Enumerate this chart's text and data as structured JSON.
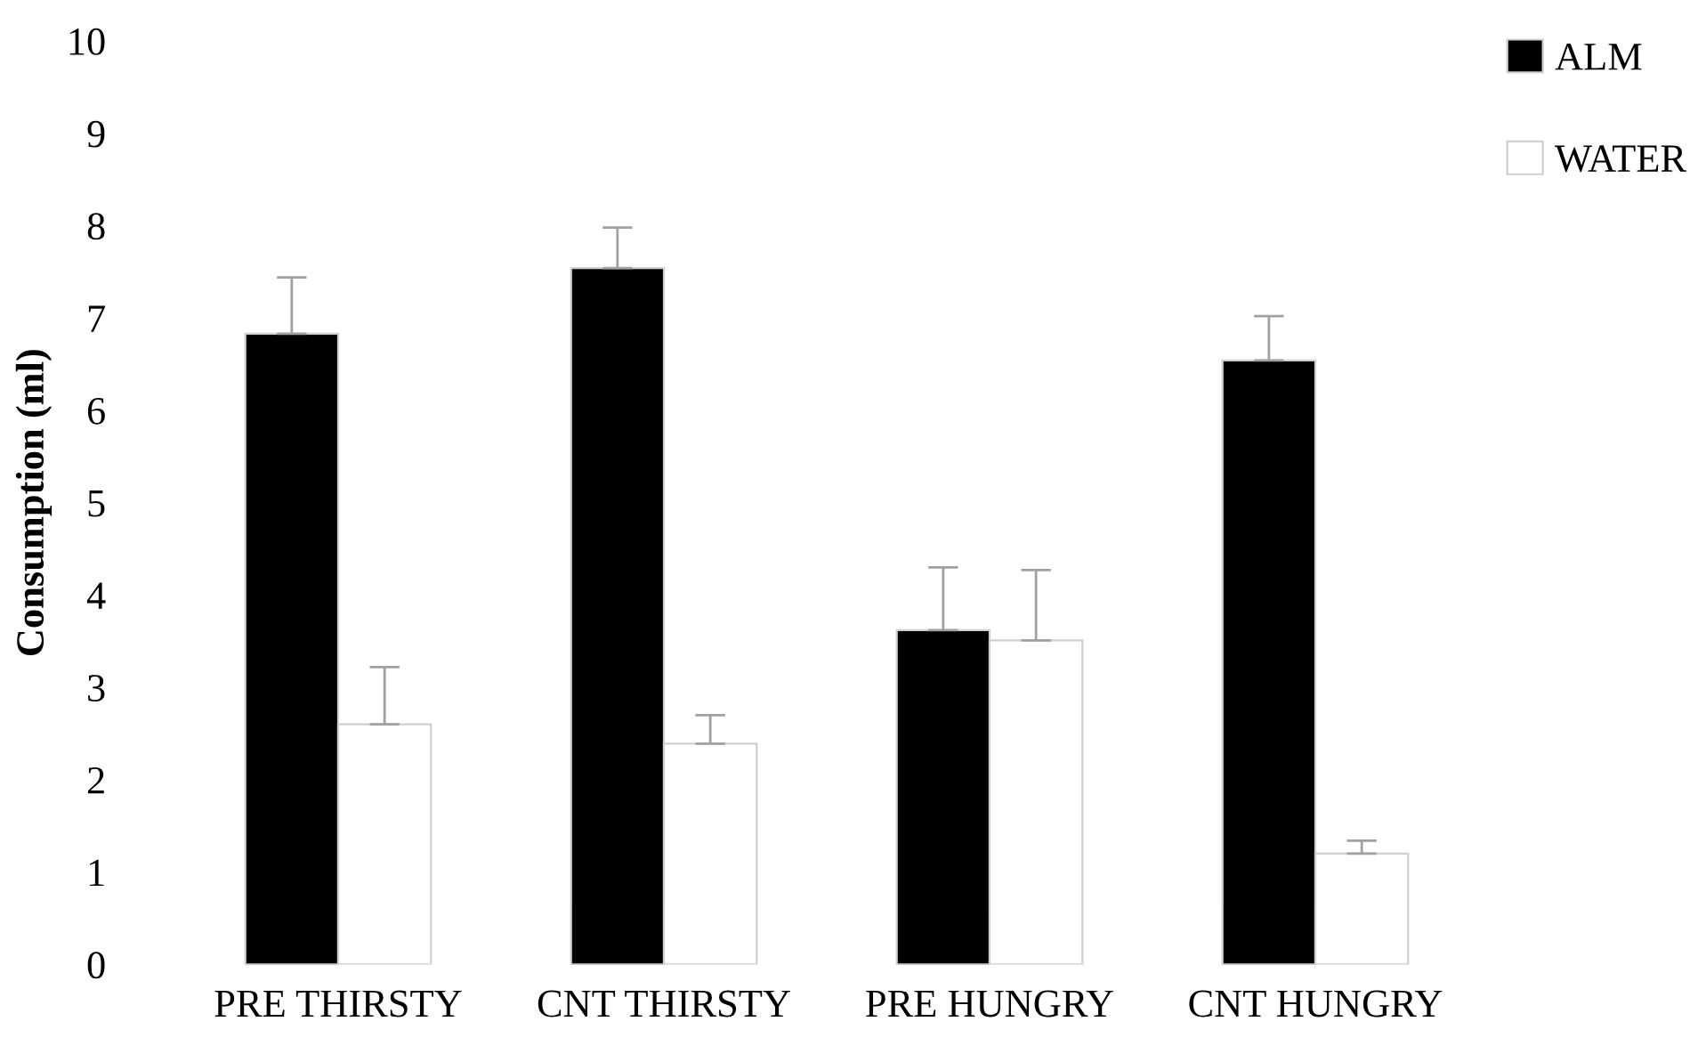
{
  "chart_data": {
    "type": "bar",
    "ylabel": "Consumption (ml)",
    "categories": [
      "PRE THIRSTY",
      "CNT THIRSTY",
      "PRE HUNGRY",
      "CNT HUNGRY"
    ],
    "series": [
      {
        "name": "ALM",
        "color": "#000000",
        "values": [
          6.83,
          7.54,
          3.62,
          6.54
        ],
        "errors": [
          [
            6.83,
            7.44
          ],
          [
            7.54,
            7.98
          ],
          [
            3.62,
            4.3
          ],
          [
            6.54,
            7.02
          ]
        ]
      },
      {
        "name": "WATER",
        "color": "#ffffff",
        "values": [
          2.6,
          2.39,
          3.51,
          1.2
        ],
        "errors": [
          [
            2.6,
            3.22
          ],
          [
            2.39,
            2.7
          ],
          [
            3.51,
            4.27
          ],
          [
            1.2,
            1.34
          ]
        ]
      }
    ],
    "ylim": [
      0,
      10
    ],
    "yticks": [
      0,
      1,
      2,
      3,
      4,
      5,
      6,
      7,
      8,
      9,
      10
    ],
    "grid": false,
    "legend": "top right"
  }
}
